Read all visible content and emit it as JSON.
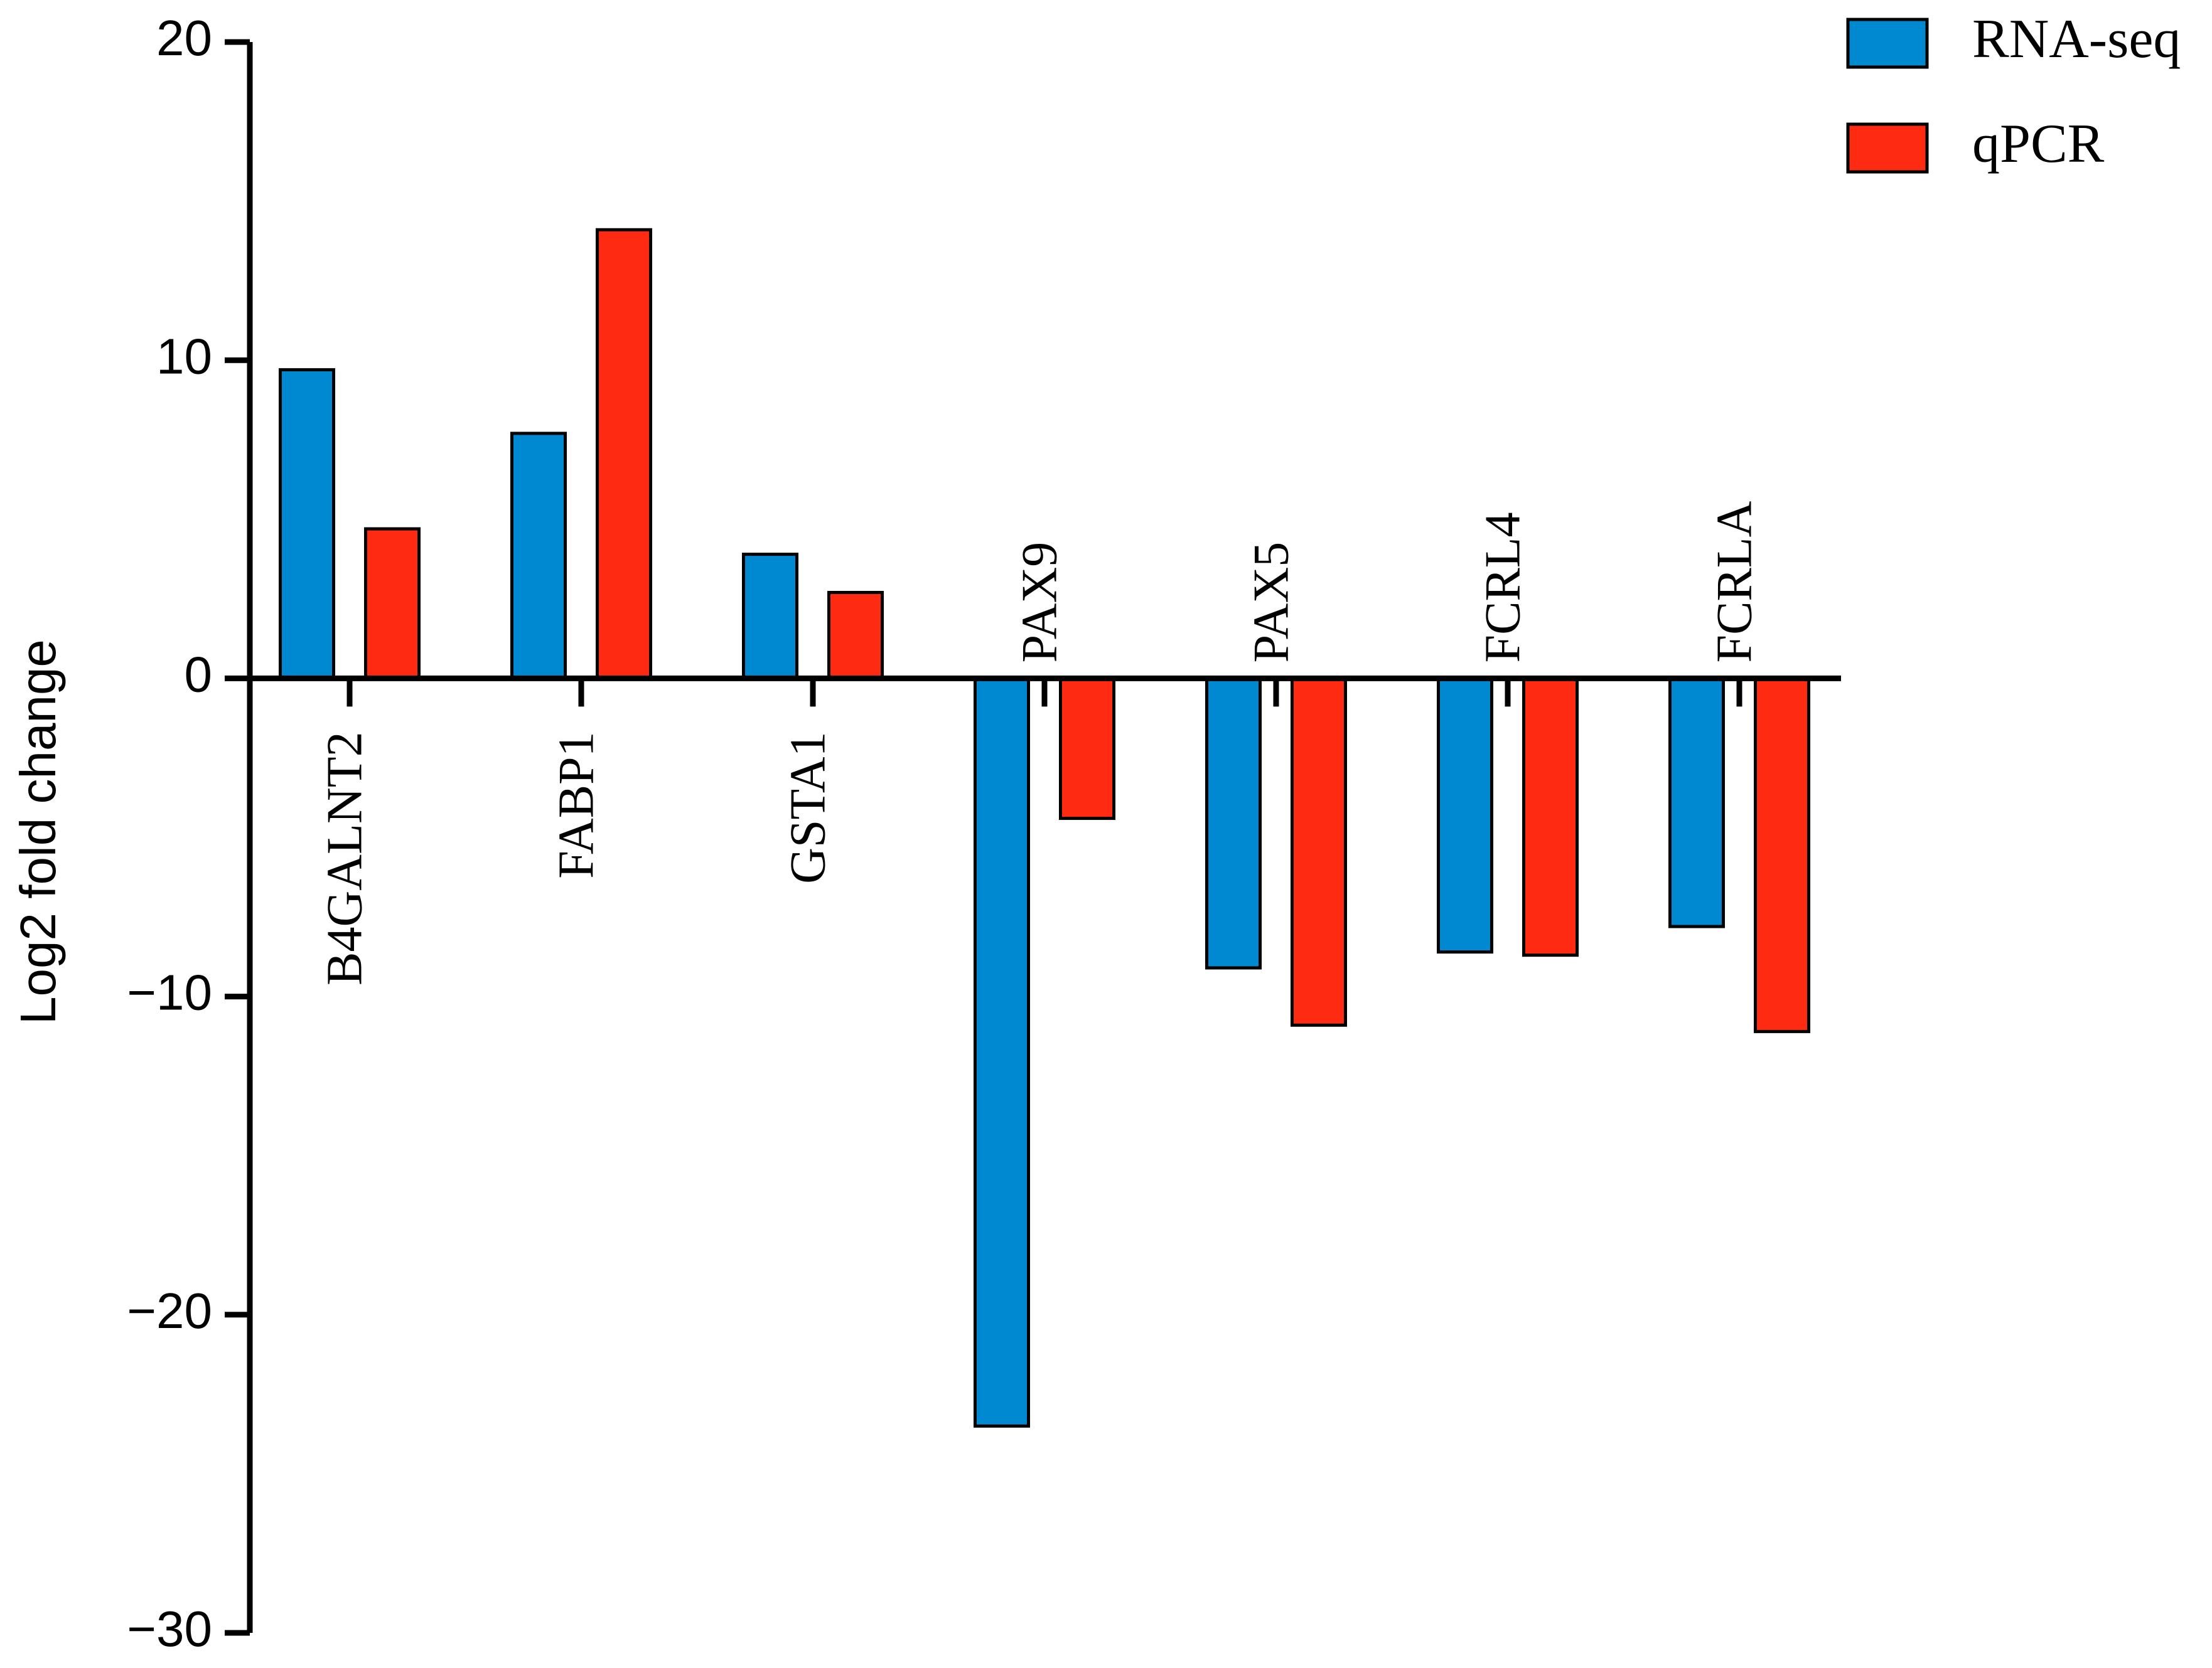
{
  "chart_data": {
    "type": "bar",
    "y_label": "Log2 fold change",
    "categories": [
      "B4GALNT2",
      "FABP1",
      "GSTA1",
      "PAX9",
      "PAX5",
      "FCRL4",
      "FCRLA"
    ],
    "series": [
      {
        "name": "RNA-seq",
        "color": "#0088d1",
        "values": [
          9.7,
          7.7,
          3.9,
          -23.5,
          -9.1,
          -8.6,
          -7.8
        ]
      },
      {
        "name": "qPCR",
        "color": "#ff2a12",
        "values": [
          4.7,
          14.1,
          2.7,
          -4.4,
          -10.9,
          -8.7,
          -11.1
        ]
      }
    ],
    "ylim": [
      -30,
      20
    ],
    "yticks": [
      {
        "value": -30,
        "label": "−30"
      },
      {
        "value": -20,
        "label": "−20"
      },
      {
        "value": -10,
        "label": "−10"
      },
      0,
      10,
      20
    ],
    "legend": "upper right",
    "grid": false
  }
}
